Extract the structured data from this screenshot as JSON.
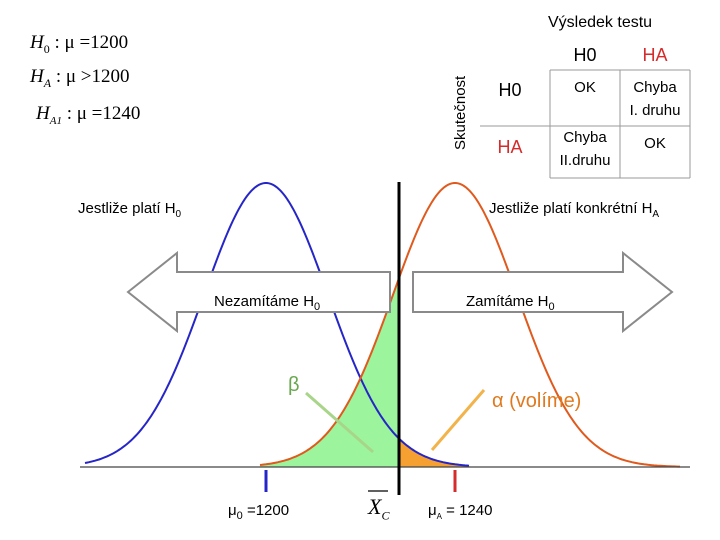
{
  "hypotheses": {
    "h0": {
      "sym": "H",
      "sub": "0",
      "rel": " : μ =1200"
    },
    "ha": {
      "sym": "H",
      "sub": "A",
      "rel": " : μ >1200"
    },
    "ha1": {
      "sym": "H",
      "sub": "A1",
      "rel": " : μ =1240"
    }
  },
  "table": {
    "title": "Výsledek testu",
    "axis_label": "Skutečnost",
    "col_h0": "H0",
    "col_ha": "HA",
    "row_h0": "H0",
    "row_ha": "HA",
    "c_h0_h0": "OK",
    "c_h0_ha_1": "Chyba",
    "c_h0_ha_2": "I. druhu",
    "c_ha_h0_1": "Chyba",
    "c_ha_h0_2": "II.druhu",
    "c_ha_ha": "OK"
  },
  "labels": {
    "left_dist": "Jestliže platí H",
    "left_dist_sub": "0",
    "right_dist": "Jestliže platí konkrétní H",
    "right_dist_sub": "A",
    "accept": "Nezamítáme H",
    "accept_sub": "0",
    "reject": "Zamítáme H",
    "reject_sub": "0",
    "beta": "β",
    "alpha": "α (volíme)",
    "mu0": "μ",
    "mu0_sub": "0",
    "mu0_val": " =1200",
    "xc": "X",
    "xc_sub": "C",
    "muA": "μ",
    "muA_sub": "A",
    "muA_val": " = 1240"
  },
  "colors": {
    "h0_curve": "#2626c8",
    "ha_curve": "#e05a1e",
    "beta_fill": "#9cf59c",
    "alpha_fill": "#f5a030",
    "arrow_fill": "#ffffff",
    "arrow_stroke": "#8a8a8a",
    "beta_pointer": "#a8d58a",
    "alpha_pointer": "#f2b34a"
  }
}
